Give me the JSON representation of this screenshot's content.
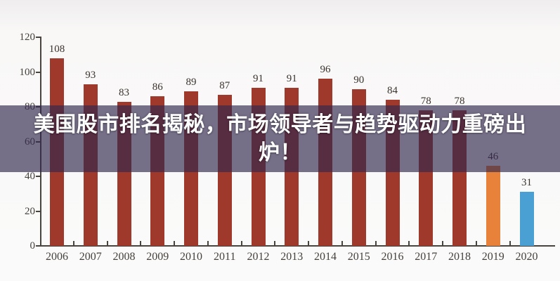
{
  "overlay": {
    "headline_line1": "美国股市排名揭秘，市场领导者与趋势驱动力重磅出",
    "headline_line2": "炉！",
    "band_color": "rgba(50,40,78,0.66)",
    "text_color": "#ffffff"
  },
  "chart_data": {
    "type": "bar",
    "categories": [
      "2006",
      "2007",
      "2008",
      "2009",
      "2010",
      "2011",
      "2012",
      "2013",
      "2014",
      "2015",
      "2016",
      "2017",
      "2018",
      "2019",
      "2020"
    ],
    "values": [
      108,
      93,
      83,
      86,
      89,
      87,
      91,
      91,
      96,
      90,
      84,
      78,
      78,
      46,
      31
    ],
    "bar_colors": [
      "#9F392B",
      "#9F392B",
      "#9F392B",
      "#9F392B",
      "#9F392B",
      "#9F392B",
      "#9F392B",
      "#9F392B",
      "#9F392B",
      "#9F392B",
      "#9F392B",
      "#9F392B",
      "#9F392B",
      "#E8823A",
      "#4AA0D2"
    ],
    "data_labels": [
      "108",
      "93",
      "83",
      "86",
      "89",
      "87",
      "91",
      "91",
      "96",
      "90",
      "84",
      "78",
      "78",
      "46",
      "31"
    ],
    "title": "",
    "xlabel": "",
    "ylabel": "",
    "ylim": [
      0,
      120
    ],
    "yticks": [
      "0",
      "20",
      "40",
      "60",
      "80",
      "100",
      "120"
    ],
    "grid": false,
    "legend": null,
    "colors": {
      "bar_default": "#9F392B",
      "bar_2019": "#E8823A",
      "bar_2020": "#4AA0D2",
      "axis": "#4a443f",
      "tick_label": "#46413c",
      "value_label": "#3a332e"
    }
  }
}
